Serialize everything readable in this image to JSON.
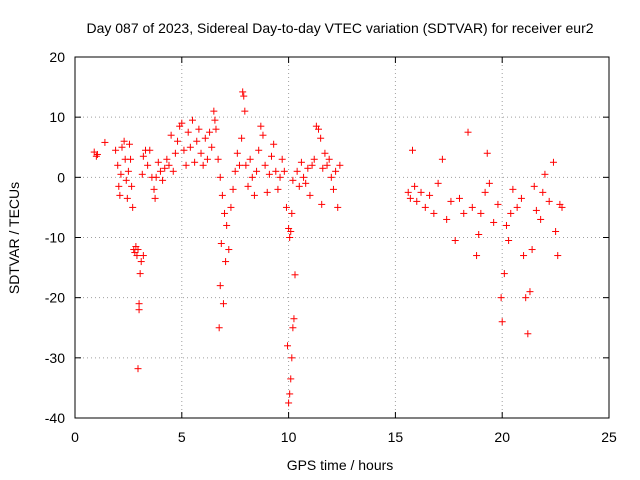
{
  "chart_data": {
    "type": "scatter",
    "title": "Day 087 of 2023, Sidereal Day-to-day VTEC variation (SDTVAR) for receiver eur2",
    "xlabel": "GPS time / hours",
    "ylabel": "SDTVAR / TECUs",
    "xlim": [
      0,
      25
    ],
    "ylim": [
      -40,
      20
    ],
    "xticks": [
      0,
      5,
      10,
      15,
      20,
      25
    ],
    "yticks": [
      -40,
      -30,
      -20,
      -10,
      0,
      10,
      20
    ],
    "xtick_labels": [
      "0",
      "5",
      "10",
      "15",
      "20",
      "25"
    ],
    "ytick_labels": [
      "-40",
      "-30",
      "-20",
      "-10",
      "0",
      "10",
      "20"
    ],
    "grid": true,
    "marker": "+",
    "series": [
      {
        "name": "SDTVAR",
        "color": "#ff0000",
        "points": [
          [
            0.9,
            4.2
          ],
          [
            1.0,
            3.5
          ],
          [
            1.05,
            3.8
          ],
          [
            1.4,
            5.8
          ],
          [
            1.9,
            4.5
          ],
          [
            2.0,
            2.0
          ],
          [
            2.05,
            -1.5
          ],
          [
            2.1,
            -3.0
          ],
          [
            2.15,
            0.5
          ],
          [
            2.2,
            5.0
          ],
          [
            2.3,
            6.0
          ],
          [
            2.35,
            3.0
          ],
          [
            2.4,
            -0.5
          ],
          [
            2.45,
            -3.5
          ],
          [
            2.5,
            1.0
          ],
          [
            2.55,
            5.5
          ],
          [
            2.6,
            3.0
          ],
          [
            2.65,
            -1.5
          ],
          [
            2.7,
            -5.0
          ],
          [
            2.75,
            -12.0
          ],
          [
            2.8,
            -12.5
          ],
          [
            2.85,
            -11.5
          ],
          [
            2.9,
            -13.0
          ],
          [
            2.95,
            -12.0
          ],
          [
            3.0,
            -21.0
          ],
          [
            3.0,
            -22.0
          ],
          [
            2.95,
            -31.8
          ],
          [
            3.05,
            -16.0
          ],
          [
            3.1,
            -14.0
          ],
          [
            3.2,
            -13.0
          ],
          [
            3.15,
            0.5
          ],
          [
            3.2,
            3.5
          ],
          [
            3.3,
            4.5
          ],
          [
            3.4,
            2.0
          ],
          [
            3.5,
            4.5
          ],
          [
            3.6,
            0.0
          ],
          [
            3.7,
            -2.0
          ],
          [
            3.75,
            -3.5
          ],
          [
            3.8,
            0.0
          ],
          [
            3.9,
            2.5
          ],
          [
            4.0,
            1.0
          ],
          [
            4.1,
            -0.5
          ],
          [
            4.2,
            1.5
          ],
          [
            4.3,
            3.0
          ],
          [
            4.4,
            2.0
          ],
          [
            4.5,
            7.0
          ],
          [
            4.6,
            1.0
          ],
          [
            4.7,
            4.0
          ],
          [
            4.8,
            6.0
          ],
          [
            4.9,
            8.5
          ],
          [
            5.0,
            9.0
          ],
          [
            5.1,
            4.5
          ],
          [
            5.2,
            2.0
          ],
          [
            5.3,
            7.5
          ],
          [
            5.4,
            5.0
          ],
          [
            5.5,
            9.5
          ],
          [
            5.6,
            2.5
          ],
          [
            5.7,
            6.0
          ],
          [
            5.8,
            8.0
          ],
          [
            5.9,
            4.0
          ],
          [
            6.0,
            2.0
          ],
          [
            6.1,
            6.5
          ],
          [
            6.2,
            3.0
          ],
          [
            6.3,
            7.5
          ],
          [
            6.4,
            5.0
          ],
          [
            6.5,
            11.0
          ],
          [
            6.55,
            9.5
          ],
          [
            6.6,
            8.0
          ],
          [
            6.7,
            3.0
          ],
          [
            6.8,
            0.0
          ],
          [
            6.9,
            -3.0
          ],
          [
            7.0,
            -6.0
          ],
          [
            6.85,
            -11.0
          ],
          [
            6.8,
            -18.0
          ],
          [
            6.75,
            -25.0
          ],
          [
            6.95,
            -21.0
          ],
          [
            7.05,
            -14.0
          ],
          [
            7.1,
            -8.0
          ],
          [
            7.2,
            -12.0
          ],
          [
            7.3,
            -5.0
          ],
          [
            7.4,
            -2.0
          ],
          [
            7.5,
            1.0
          ],
          [
            7.6,
            4.0
          ],
          [
            7.7,
            2.0
          ],
          [
            7.8,
            6.5
          ],
          [
            7.85,
            14.2
          ],
          [
            7.9,
            13.5
          ],
          [
            7.95,
            11.0
          ],
          [
            8.0,
            2.0
          ],
          [
            8.1,
            -1.5
          ],
          [
            8.2,
            3.0
          ],
          [
            8.3,
            0.0
          ],
          [
            8.4,
            -3.0
          ],
          [
            8.5,
            1.0
          ],
          [
            8.6,
            4.5
          ],
          [
            8.7,
            8.5
          ],
          [
            8.8,
            7.0
          ],
          [
            8.9,
            2.0
          ],
          [
            9.0,
            -2.5
          ],
          [
            9.1,
            0.5
          ],
          [
            9.2,
            3.5
          ],
          [
            9.3,
            5.5
          ],
          [
            9.4,
            1.0
          ],
          [
            9.5,
            -2.0
          ],
          [
            9.6,
            0.0
          ],
          [
            9.7,
            3.0
          ],
          [
            9.8,
            1.0
          ],
          [
            9.9,
            -5.0
          ],
          [
            10.0,
            -8.5
          ],
          [
            10.05,
            -10.0
          ],
          [
            10.1,
            -9.0
          ],
          [
            10.15,
            -6.0
          ],
          [
            10.2,
            -0.5
          ],
          [
            9.95,
            -28.0
          ],
          [
            10.0,
            -37.5
          ],
          [
            10.05,
            -36.0
          ],
          [
            10.1,
            -33.5
          ],
          [
            10.15,
            -30.0
          ],
          [
            10.2,
            -25.0
          ],
          [
            10.25,
            -23.5
          ],
          [
            10.3,
            -16.2
          ],
          [
            10.4,
            1.0
          ],
          [
            10.5,
            -1.5
          ],
          [
            10.6,
            2.5
          ],
          [
            10.7,
            0.0
          ],
          [
            10.8,
            -1.0
          ],
          [
            10.9,
            1.5
          ],
          [
            11.0,
            -3.0
          ],
          [
            11.1,
            2.0
          ],
          [
            11.2,
            3.0
          ],
          [
            11.3,
            8.5
          ],
          [
            11.4,
            8.0
          ],
          [
            11.5,
            6.5
          ],
          [
            11.55,
            -4.5
          ],
          [
            11.6,
            1.5
          ],
          [
            11.7,
            4.0
          ],
          [
            11.8,
            2.0
          ],
          [
            11.9,
            3.0
          ],
          [
            12.0,
            0.0
          ],
          [
            12.1,
            -2.0
          ],
          [
            12.2,
            1.0
          ],
          [
            12.3,
            -5.0
          ],
          [
            12.4,
            2.0
          ],
          [
            15.6,
            -2.5
          ],
          [
            15.7,
            -3.5
          ],
          [
            15.8,
            4.5
          ],
          [
            15.9,
            -1.5
          ],
          [
            16.0,
            -4.0
          ],
          [
            16.2,
            -2.5
          ],
          [
            16.4,
            -5.0
          ],
          [
            16.6,
            -3.0
          ],
          [
            16.8,
            -6.0
          ],
          [
            17.0,
            -1.0
          ],
          [
            17.2,
            3.0
          ],
          [
            17.4,
            -7.0
          ],
          [
            17.6,
            -4.0
          ],
          [
            17.8,
            -10.5
          ],
          [
            18.0,
            -3.5
          ],
          [
            18.2,
            -6.0
          ],
          [
            18.4,
            7.5
          ],
          [
            18.6,
            -5.0
          ],
          [
            18.8,
            -13.0
          ],
          [
            18.9,
            -9.5
          ],
          [
            19.0,
            -6.0
          ],
          [
            19.2,
            -2.5
          ],
          [
            19.3,
            4.0
          ],
          [
            19.4,
            -1.0
          ],
          [
            19.6,
            -7.5
          ],
          [
            19.8,
            -4.5
          ],
          [
            19.95,
            -20.0
          ],
          [
            20.0,
            -24.0
          ],
          [
            20.1,
            -16.0
          ],
          [
            20.2,
            -8.0
          ],
          [
            20.3,
            -10.5
          ],
          [
            20.4,
            -6.0
          ],
          [
            20.5,
            -2.0
          ],
          [
            20.7,
            -5.0
          ],
          [
            20.9,
            -3.5
          ],
          [
            21.0,
            -13.0
          ],
          [
            21.1,
            -20.0
          ],
          [
            21.2,
            -26.0
          ],
          [
            21.3,
            -19.0
          ],
          [
            21.4,
            -12.0
          ],
          [
            21.5,
            -1.5
          ],
          [
            21.6,
            -5.5
          ],
          [
            21.8,
            -7.0
          ],
          [
            21.9,
            -2.5
          ],
          [
            22.0,
            0.5
          ],
          [
            22.2,
            -4.0
          ],
          [
            22.4,
            2.5
          ],
          [
            22.5,
            -9.0
          ],
          [
            22.6,
            -13.0
          ],
          [
            22.7,
            -4.5
          ],
          [
            22.8,
            -5.0
          ]
        ]
      }
    ]
  }
}
